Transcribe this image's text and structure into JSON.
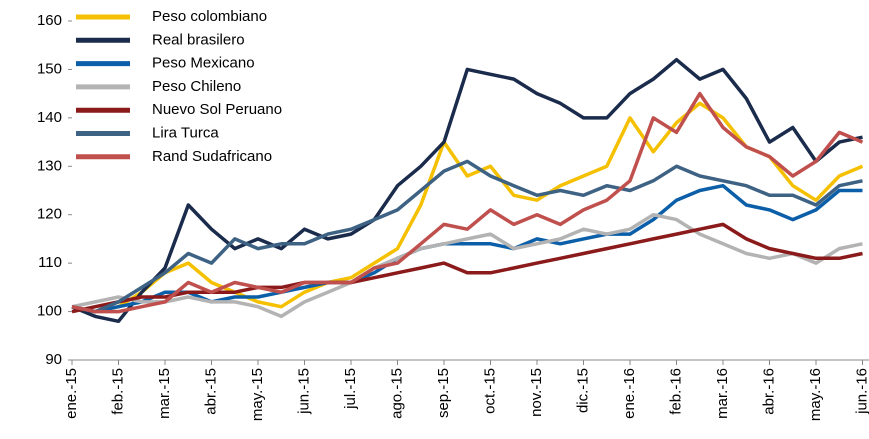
{
  "chart_data": {
    "type": "line",
    "xlim": [
      0,
      17
    ],
    "xticks": [
      {
        "value": 0,
        "label": "ene.-15"
      },
      {
        "value": 1,
        "label": "feb.-15"
      },
      {
        "value": 2,
        "label": "mar.-15"
      },
      {
        "value": 3,
        "label": "abr.-15"
      },
      {
        "value": 4,
        "label": "may.-15"
      },
      {
        "value": 5,
        "label": "jun.-15"
      },
      {
        "value": 6,
        "label": "jul.-15"
      },
      {
        "value": 7,
        "label": "ago.-15"
      },
      {
        "value": 8,
        "label": "sep.-15"
      },
      {
        "value": 9,
        "label": "oct.-15"
      },
      {
        "value": 10,
        "label": "nov.-15"
      },
      {
        "value": 11,
        "label": "dic.-15"
      },
      {
        "value": 12,
        "label": "ene.-16"
      },
      {
        "value": 13,
        "label": "feb.-16"
      },
      {
        "value": 14,
        "label": "mar.-16"
      },
      {
        "value": 15,
        "label": "abr.-16"
      },
      {
        "value": 16,
        "label": "may.-16"
      },
      {
        "value": 17,
        "label": "jun.-16"
      }
    ],
    "ylim": [
      90,
      160
    ],
    "yticks": [
      90,
      100,
      110,
      120,
      130,
      140,
      150,
      160
    ],
    "legend": "top-left",
    "x": [
      0,
      0.5,
      1,
      1.5,
      2,
      2.5,
      3,
      3.5,
      4,
      4.5,
      5,
      5.5,
      6,
      6.5,
      7,
      7.5,
      8,
      8.5,
      9,
      9.5,
      10,
      10.5,
      11,
      11.5,
      12,
      12.5,
      13,
      13.5,
      14,
      14.5,
      15,
      15.5,
      16,
      16.5,
      17
    ],
    "series": [
      {
        "name": "Peso colombiano",
        "color": "#f5c000",
        "values": [
          101,
          100,
          101,
          104,
          108,
          110,
          106,
          104,
          102,
          101,
          104,
          106,
          107,
          110,
          113,
          122,
          135,
          128,
          130,
          124,
          123,
          126,
          128,
          130,
          140,
          133,
          139,
          143,
          140,
          134,
          132,
          126,
          123,
          128,
          130
        ]
      },
      {
        "name": "Real brasilero",
        "color": "#1a2b4c",
        "values": [
          101,
          99,
          98,
          104,
          109,
          122,
          117,
          113,
          115,
          113,
          117,
          115,
          116,
          119,
          126,
          130,
          135,
          150,
          149,
          148,
          145,
          143,
          140,
          140,
          145,
          148,
          152,
          148,
          150,
          144,
          135,
          138,
          131,
          135,
          136
        ]
      },
      {
        "name": "Peso Mexicano",
        "color": "#0b5ea8",
        "values": [
          101,
          100,
          101,
          102,
          104,
          104,
          102,
          103,
          103,
          104,
          105,
          106,
          106,
          108,
          111,
          113,
          114,
          114,
          114,
          113,
          115,
          114,
          115,
          116,
          116,
          119,
          123,
          125,
          126,
          122,
          121,
          119,
          121,
          125,
          125
        ]
      },
      {
        "name": "Peso Chileno",
        "color": "#b3b3b3",
        "values": [
          101,
          102,
          103,
          102,
          102,
          103,
          102,
          102,
          101,
          99,
          102,
          104,
          106,
          109,
          111,
          113,
          114,
          115,
          116,
          113,
          114,
          115,
          117,
          116,
          117,
          120,
          119,
          116,
          114,
          112,
          111,
          112,
          110,
          113,
          114
        ]
      },
      {
        "name": "Nuevo Sol Peruano",
        "color": "#8b1a1a",
        "values": [
          100,
          101,
          102,
          103,
          103,
          104,
          104,
          104,
          105,
          105,
          106,
          106,
          106,
          107,
          108,
          109,
          110,
          108,
          108,
          109,
          110,
          111,
          112,
          113,
          114,
          115,
          116,
          117,
          118,
          115,
          113,
          112,
          111,
          111,
          112
        ]
      },
      {
        "name": "Lira Turca",
        "color": "#3e6283",
        "values": [
          101,
          100,
          102,
          105,
          108,
          112,
          110,
          115,
          113,
          114,
          114,
          116,
          117,
          119,
          121,
          125,
          129,
          131,
          128,
          126,
          124,
          125,
          124,
          126,
          125,
          127,
          130,
          128,
          127,
          126,
          124,
          124,
          122,
          126,
          127
        ]
      },
      {
        "name": "Rand Sudafricano",
        "color": "#c0504d",
        "values": [
          101,
          100,
          100,
          101,
          102,
          106,
          104,
          106,
          105,
          104,
          106,
          106,
          106,
          109,
          110,
          114,
          118,
          117,
          121,
          118,
          120,
          118,
          121,
          123,
          127,
          140,
          137,
          145,
          138,
          134,
          132,
          128,
          131,
          137,
          135
        ]
      }
    ]
  }
}
